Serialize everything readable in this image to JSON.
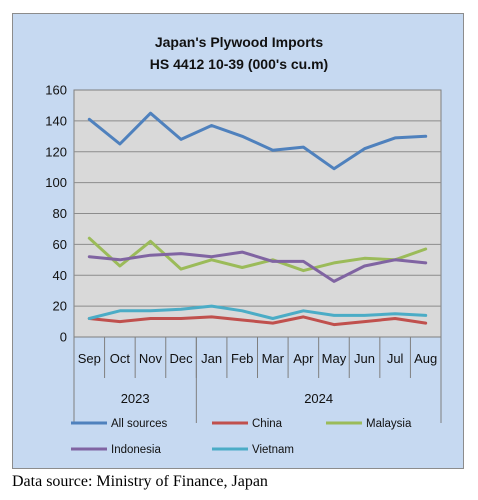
{
  "chart_data": {
    "type": "line",
    "title": "Japan's Plywood Imports",
    "subtitle": "HS 4412 10-39  (000's cu.m)",
    "categories": [
      "Sep",
      "Oct",
      "Nov",
      "Dec",
      "Jan",
      "Feb",
      "Mar",
      "Apr",
      "May",
      "Jun",
      "Jul",
      "Aug"
    ],
    "year_groups": [
      {
        "label": "2023",
        "count": 4
      },
      {
        "label": "2024",
        "count": 8
      }
    ],
    "ylim": [
      0,
      160
    ],
    "yticks": [
      0,
      20,
      40,
      60,
      80,
      100,
      120,
      140,
      160
    ],
    "grid": true,
    "legend_position": "bottom",
    "series": [
      {
        "name": "All sources",
        "color": "#4f81bd",
        "values": [
          141,
          125,
          145,
          128,
          137,
          130,
          121,
          123,
          109,
          122,
          129,
          130
        ]
      },
      {
        "name": "China",
        "color": "#c0504d",
        "values": [
          12,
          10,
          12,
          12,
          13,
          11,
          9,
          13,
          8,
          10,
          12,
          9
        ]
      },
      {
        "name": "Malaysia",
        "color": "#9bbb59",
        "values": [
          64,
          46,
          62,
          44,
          50,
          45,
          50,
          43,
          48,
          51,
          50,
          57
        ]
      },
      {
        "name": "Indonesia",
        "color": "#8064a2",
        "values": [
          52,
          50,
          53,
          54,
          52,
          55,
          49,
          49,
          36,
          46,
          50,
          48
        ]
      },
      {
        "name": "Vietnam",
        "color": "#4bacc6",
        "values": [
          12,
          17,
          17,
          18,
          20,
          17,
          12,
          17,
          14,
          14,
          15,
          14
        ]
      }
    ]
  },
  "footer": {
    "source": "Data source: Ministry of Finance, Japan"
  }
}
